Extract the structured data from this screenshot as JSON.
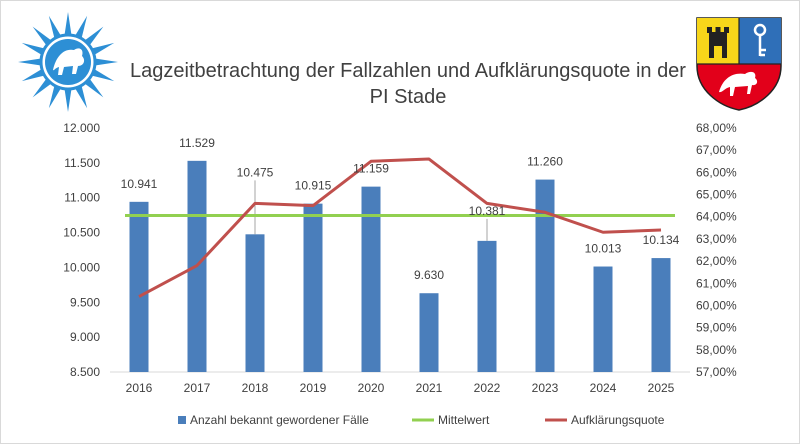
{
  "chart_data": {
    "type": "bar",
    "title_lines": [
      "Lagzeitbetrachtung der Fallzahlen und Aufklärungsquote in der",
      "PI Stade"
    ],
    "categories": [
      "2016",
      "2017",
      "2018",
      "2019",
      "2020",
      "2021",
      "2022",
      "2023",
      "2024",
      "2025"
    ],
    "series": [
      {
        "name": "Anzahl bekannt gewordener Fälle",
        "kind": "bar",
        "axis": "left",
        "color": "#4a7ebb",
        "values": [
          10941,
          11529,
          10475,
          10915,
          11159,
          9630,
          10381,
          11260,
          10013,
          10134
        ],
        "labels": [
          "10.941",
          "11.529",
          "10.475",
          "10.915",
          "11.159",
          "9.630",
          "10.381",
          "11.260",
          "10.013",
          "10.134"
        ]
      },
      {
        "name": "Mittelwert",
        "kind": "line",
        "axis": "left",
        "color": "#92d050",
        "values": [
          10744,
          10744,
          10744,
          10744,
          10744,
          10744,
          10744,
          10744,
          10744,
          10744
        ]
      },
      {
        "name": "Aufklärungsquote",
        "kind": "line",
        "axis": "right",
        "color": "#c0504d",
        "values": [
          60.4,
          61.8,
          64.6,
          64.5,
          66.5,
          66.6,
          64.6,
          64.2,
          63.3,
          63.4
        ]
      }
    ],
    "y_left": {
      "min": 8500,
      "max": 12000,
      "ticks": [
        12000,
        11500,
        11000,
        10500,
        10000,
        9500,
        9000,
        8500
      ],
      "tick_labels": [
        "12.000",
        "11.500",
        "11.000",
        "10.500",
        "10.000",
        "9.500",
        "9.000",
        "8.500"
      ]
    },
    "y_right": {
      "min": 57,
      "max": 68,
      "ticks": [
        68,
        67,
        66,
        65,
        64,
        63,
        62,
        61,
        60,
        59,
        58,
        57
      ],
      "tick_labels": [
        "68,00%",
        "67,00%",
        "66,00%",
        "65,00%",
        "64,00%",
        "63,00%",
        "62,00%",
        "61,00%",
        "60,00%",
        "59,00%",
        "58,00%",
        "57,00%"
      ]
    },
    "grid": false,
    "legend_position": "bottom"
  },
  "logos": {
    "left": "police-star-badge",
    "right": "district-coat-of-arms"
  }
}
